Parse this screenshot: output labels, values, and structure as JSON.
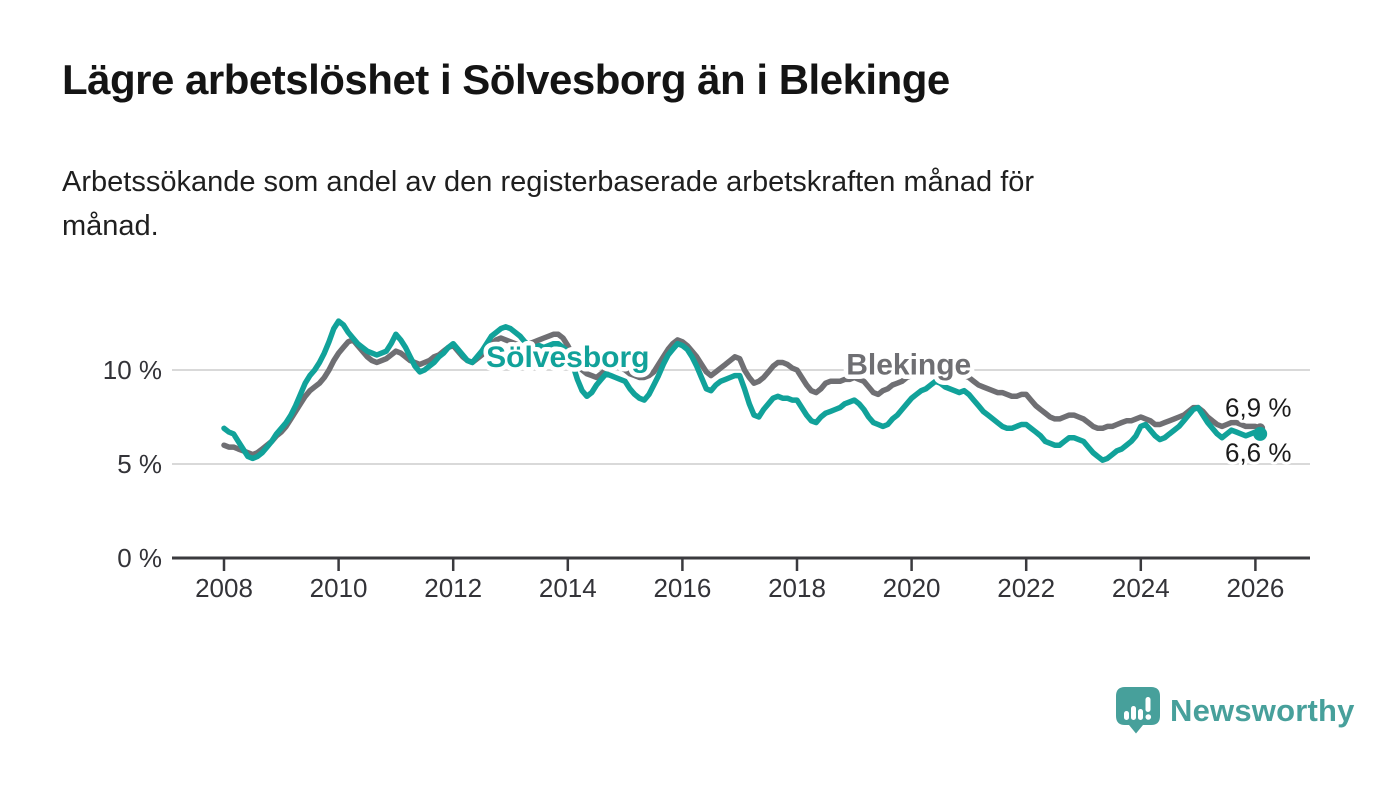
{
  "title": "Lägre arbetslöshet i Sölvesborg än i Blekinge",
  "subtitle": "Arbetssökande som andel av den registerbaserade arbetskraften månad för\nmånad.",
  "branding": {
    "name": "Newsworthy",
    "icon": "speech-bubble-bar-chart-icon",
    "color": "#47a09b"
  },
  "colors": {
    "background": "#ffffff",
    "solvesborg_line": "#11a29a",
    "blekinge_line": "#6f6f73",
    "gridline": "#d9d9d9",
    "axis": "#3a3a3e",
    "axis_text": "#333338",
    "end_label_text": "#1b1b1b"
  },
  "chart_data": {
    "type": "line",
    "title": "Lägre arbetslöshet i Sölvesborg än i Blekinge",
    "xlabel": "",
    "ylabel": "",
    "unit": "%",
    "grid": "horizontal",
    "legend_position": "inline-labels",
    "x_axis": {
      "ticks": [
        2008,
        2010,
        2012,
        2014,
        2016,
        2018,
        2020,
        2022,
        2024,
        2026
      ],
      "range": [
        2007.1,
        2026.95
      ]
    },
    "y_axis": {
      "tick_values": [
        0,
        5,
        10
      ],
      "tick_labels": [
        "0 %",
        "5 %",
        "10 %"
      ],
      "grid_values": [
        5,
        10
      ],
      "range": [
        0,
        13.2
      ]
    },
    "series": [
      {
        "name": "Sölvesborg",
        "color": "#11a29a",
        "start_year": 2008,
        "step_months": 1,
        "end_dot_radius": 7,
        "values": [
          6.9,
          6.7,
          6.6,
          6.2,
          5.8,
          5.4,
          5.3,
          5.4,
          5.6,
          5.9,
          6.2,
          6.6,
          6.9,
          7.2,
          7.6,
          8.1,
          8.7,
          9.3,
          9.7,
          10.0,
          10.4,
          10.9,
          11.5,
          12.2,
          12.6,
          12.4,
          12.0,
          11.7,
          11.4,
          11.2,
          11.0,
          10.9,
          10.8,
          10.9,
          11.0,
          11.4,
          11.9,
          11.6,
          11.2,
          10.7,
          10.2,
          9.9,
          10.0,
          10.2,
          10.4,
          10.7,
          10.9,
          11.2,
          11.4,
          11.1,
          10.8,
          10.5,
          10.4,
          10.7,
          11.0,
          11.4,
          11.8,
          12.0,
          12.2,
          12.3,
          12.2,
          12.0,
          11.8,
          11.5,
          11.3,
          11.2,
          11.3,
          11.2,
          11.3,
          11.4,
          11.4,
          11.2,
          11.0,
          10.3,
          9.5,
          8.9,
          8.6,
          8.8,
          9.2,
          9.5,
          9.8,
          9.7,
          9.6,
          9.5,
          9.4,
          9.0,
          8.7,
          8.5,
          8.4,
          8.7,
          9.2,
          9.7,
          10.3,
          10.8,
          11.1,
          11.4,
          11.3,
          11.1,
          10.7,
          10.2,
          9.6,
          9.0,
          8.9,
          9.2,
          9.4,
          9.5,
          9.6,
          9.7,
          9.7,
          9.0,
          8.2,
          7.6,
          7.5,
          7.9,
          8.2,
          8.5,
          8.6,
          8.5,
          8.5,
          8.4,
          8.4,
          8.0,
          7.6,
          7.3,
          7.2,
          7.5,
          7.7,
          7.8,
          7.9,
          8.0,
          8.2,
          8.3,
          8.4,
          8.2,
          7.9,
          7.5,
          7.2,
          7.1,
          7.0,
          7.1,
          7.4,
          7.6,
          7.9,
          8.2,
          8.5,
          8.7,
          8.9,
          9.0,
          9.2,
          9.4,
          9.3,
          9.1,
          9.0,
          8.9,
          8.8,
          8.9,
          8.7,
          8.4,
          8.1,
          7.8,
          7.6,
          7.4,
          7.2,
          7.0,
          6.9,
          6.9,
          7.0,
          7.1,
          7.1,
          6.9,
          6.7,
          6.5,
          6.2,
          6.1,
          6.0,
          6.0,
          6.2,
          6.4,
          6.4,
          6.3,
          6.2,
          5.9,
          5.6,
          5.4,
          5.2,
          5.3,
          5.5,
          5.7,
          5.8,
          6.0,
          6.2,
          6.5,
          7.0,
          7.1,
          6.8,
          6.5,
          6.3,
          6.4,
          6.6,
          6.8,
          7.0,
          7.3,
          7.6,
          7.9,
          8.0,
          7.6,
          7.2,
          6.9,
          6.6,
          6.4,
          6.6,
          6.8,
          6.7,
          6.6,
          6.5,
          6.6,
          6.7,
          6.6
        ]
      },
      {
        "name": "Blekinge",
        "color": "#6f6f73",
        "start_year": 2008,
        "step_months": 1,
        "end_dot_radius": 5,
        "values": [
          6.0,
          5.9,
          5.9,
          5.8,
          5.7,
          5.6,
          5.5,
          5.6,
          5.8,
          6.0,
          6.2,
          6.5,
          6.7,
          7.0,
          7.4,
          7.8,
          8.2,
          8.6,
          8.9,
          9.1,
          9.3,
          9.6,
          10.0,
          10.5,
          10.9,
          11.2,
          11.5,
          11.6,
          11.3,
          11.0,
          10.7,
          10.5,
          10.4,
          10.5,
          10.6,
          10.8,
          11.0,
          10.9,
          10.7,
          10.5,
          10.4,
          10.3,
          10.4,
          10.5,
          10.7,
          10.8,
          11.0,
          11.2,
          11.3,
          11.0,
          10.7,
          10.5,
          10.4,
          10.6,
          10.8,
          11.1,
          11.4,
          11.6,
          11.7,
          11.6,
          11.5,
          11.4,
          11.3,
          11.3,
          11.4,
          11.5,
          11.6,
          11.7,
          11.8,
          11.9,
          11.9,
          11.7,
          11.3,
          10.8,
          10.3,
          10.0,
          9.8,
          9.7,
          9.6,
          9.8,
          10.0,
          10.1,
          10.2,
          10.1,
          10.0,
          9.8,
          9.7,
          9.6,
          9.6,
          9.7,
          9.9,
          10.3,
          10.7,
          11.1,
          11.4,
          11.6,
          11.5,
          11.3,
          11.0,
          10.7,
          10.3,
          9.9,
          9.7,
          9.9,
          10.1,
          10.3,
          10.5,
          10.7,
          10.6,
          10.0,
          9.6,
          9.3,
          9.4,
          9.6,
          9.9,
          10.2,
          10.4,
          10.4,
          10.3,
          10.1,
          10.0,
          9.6,
          9.2,
          8.9,
          8.8,
          9.0,
          9.3,
          9.4,
          9.4,
          9.4,
          9.5,
          9.5,
          9.6,
          9.5,
          9.4,
          9.1,
          8.8,
          8.7,
          8.9,
          9.0,
          9.2,
          9.3,
          9.4,
          9.6,
          9.7,
          9.9,
          10.1,
          10.2,
          10.3,
          10.4,
          10.4,
          10.2,
          10.0,
          9.9,
          9.8,
          9.7,
          9.6,
          9.4,
          9.2,
          9.1,
          9.0,
          8.9,
          8.8,
          8.8,
          8.7,
          8.6,
          8.6,
          8.7,
          8.7,
          8.4,
          8.1,
          7.9,
          7.7,
          7.5,
          7.4,
          7.4,
          7.5,
          7.6,
          7.6,
          7.5,
          7.4,
          7.2,
          7.0,
          6.9,
          6.9,
          7.0,
          7.0,
          7.1,
          7.2,
          7.3,
          7.3,
          7.4,
          7.5,
          7.4,
          7.3,
          7.1,
          7.1,
          7.2,
          7.3,
          7.4,
          7.5,
          7.6,
          7.8,
          8.0,
          8.0,
          7.8,
          7.5,
          7.3,
          7.1,
          7.0,
          7.1,
          7.2,
          7.2,
          7.1,
          7.0,
          7.0,
          7.0,
          6.9
        ]
      }
    ],
    "series_labels": [
      {
        "text": "Sölvesborg",
        "year": 2014.0,
        "value": 10.7,
        "color": "#11a29a"
      },
      {
        "text": "Blekinge",
        "year": 2019.95,
        "value": 10.3,
        "color": "#6f6f73"
      }
    ],
    "end_labels": [
      {
        "text": "6,9 %",
        "year": 2026.05,
        "value": 8.0,
        "series": "Blekinge"
      },
      {
        "text": "6,6 %",
        "year": 2026.05,
        "value": 5.6,
        "series": "Sölvesborg"
      }
    ]
  }
}
